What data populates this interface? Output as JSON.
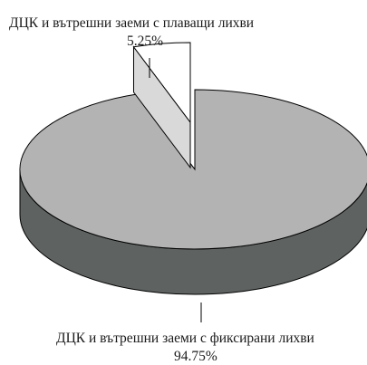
{
  "chart_data": {
    "type": "pie",
    "style": "3d-exploded",
    "slices": [
      {
        "name": "ДЦК и вътрешни заеми с фиксирани лихви",
        "value": 94.75,
        "label": "94.75%",
        "top_color": "#b3b3b3",
        "side_color": "#5e6261"
      },
      {
        "name": "ДЦК и вътрешни заеми с плаващи лихви",
        "value": 5.25,
        "label": "5.25%",
        "top_color": "#ffffff",
        "side_color": "#e6e6e6"
      }
    ],
    "outline_color": "#000000"
  }
}
